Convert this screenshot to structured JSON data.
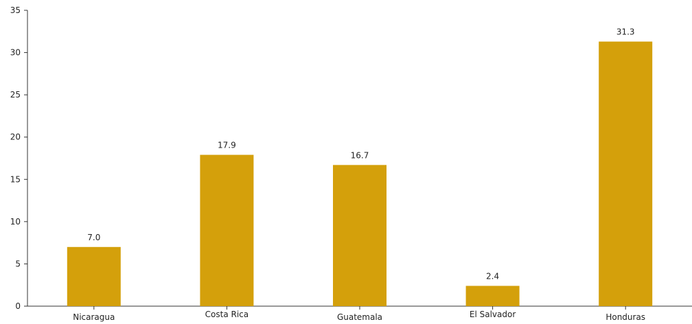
{
  "chart_data": {
    "type": "bar",
    "categories": [
      "Nicaragua",
      "Costa Rica",
      "Guatemala",
      "El Salvador",
      "Honduras"
    ],
    "values": [
      7.0,
      17.9,
      16.7,
      2.4,
      31.3
    ],
    "value_labels": [
      "7.0",
      "17.9",
      "16.7",
      "2.4",
      "31.3"
    ],
    "yticks": [
      "0",
      "5",
      "10",
      "15",
      "20",
      "25",
      "30",
      "35"
    ],
    "ylim": [
      0,
      35
    ],
    "title": "",
    "xlabel": "",
    "ylabel": "",
    "grid": false,
    "bar_color": "#D4A00B",
    "axis_color": "#333333"
  }
}
